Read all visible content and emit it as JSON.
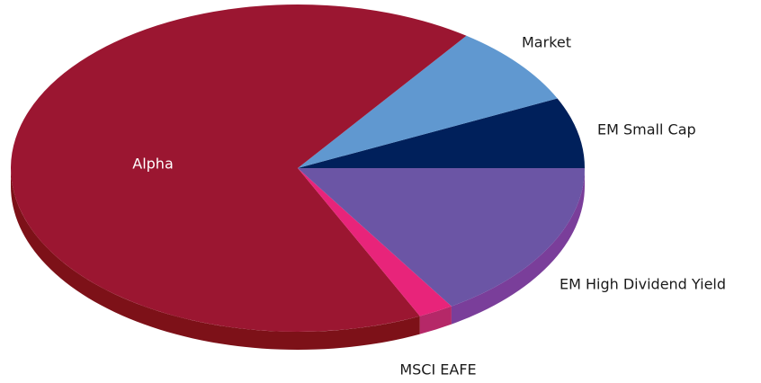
{
  "chart_data": {
    "type": "pie3d",
    "categories": [
      "EM Small Cap",
      "Market",
      "Alpha",
      "MSCI EAFE",
      "EM High Dividend Yield"
    ],
    "values": [
      7,
      8,
      67,
      2,
      16
    ],
    "colors": [
      "#00205b",
      "#6098d0",
      "#9b1631",
      "#e8247a",
      "#6b55a5"
    ],
    "side_colors": [
      "#001540",
      "#4a7db0",
      "#7d1118",
      "#b52868",
      "#7a3e9a"
    ]
  }
}
